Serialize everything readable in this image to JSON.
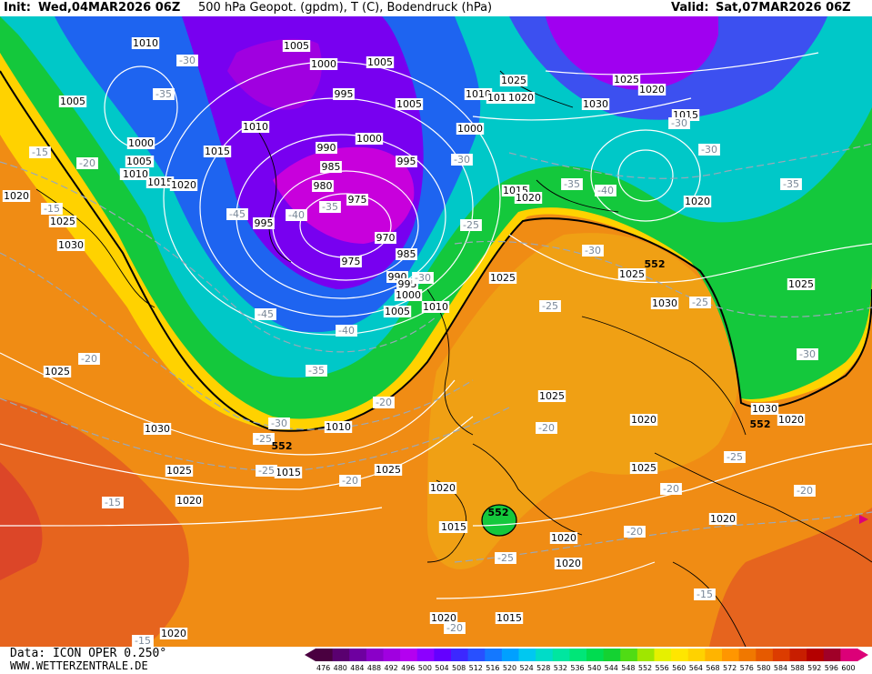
{
  "header": {
    "init_label": "Init:",
    "init_value": "Wed,04MAR2026 06Z",
    "title": "500 hPa Geopot. (gpdm), T (C), Bodendruck (hPa)",
    "valid_label": "Valid:",
    "valid_value": "Sat,07MAR2026 06Z"
  },
  "footer": {
    "data_source": "Data: ICON OPER 0.250°",
    "website": "WWW.WETTERZENTRALE.DE"
  },
  "colorbar": {
    "ticks": [
      "476",
      "480",
      "484",
      "488",
      "492",
      "496",
      "500",
      "504",
      "508",
      "512",
      "516",
      "520",
      "524",
      "528",
      "532",
      "536",
      "540",
      "544",
      "548",
      "552",
      "556",
      "560",
      "564",
      "568",
      "572",
      "576",
      "580",
      "584",
      "588",
      "592",
      "596",
      "600"
    ],
    "colors": [
      "#4a0040",
      "#5a0070",
      "#6e00a0",
      "#8a00c8",
      "#a000e0",
      "#b400f0",
      "#8c00ff",
      "#6400ff",
      "#3c28ff",
      "#2850ff",
      "#1478ff",
      "#00a0ff",
      "#00c8f0",
      "#00dcc8",
      "#00e6a0",
      "#00e678",
      "#00dc50",
      "#14d232",
      "#50dc14",
      "#a0e600",
      "#e6f000",
      "#ffe600",
      "#ffd200",
      "#ffb400",
      "#ff9600",
      "#f07800",
      "#e65a00",
      "#dc3c00",
      "#c81e00",
      "#b40000",
      "#a00028",
      "#dc0078"
    ]
  },
  "map": {
    "pressure_labels": [
      {
        "text": "1010"
      },
      {
        "text": "1005"
      },
      {
        "text": "1005"
      },
      {
        "text": "1000"
      },
      {
        "text": "1005"
      },
      {
        "text": "1025"
      },
      {
        "text": "1025"
      },
      {
        "text": "1010"
      },
      {
        "text": "1005"
      },
      {
        "text": "995"
      },
      {
        "text": "1005"
      },
      {
        "text": "1010"
      },
      {
        "text": "1011"
      },
      {
        "text": "1020"
      },
      {
        "text": "1030"
      },
      {
        "text": "1020"
      },
      {
        "text": "1015"
      },
      {
        "text": "1010"
      },
      {
        "text": "1000"
      },
      {
        "text": "1000"
      },
      {
        "text": "1000"
      },
      {
        "text": "1005"
      },
      {
        "text": "1015"
      },
      {
        "text": "990"
      },
      {
        "text": "1010"
      },
      {
        "text": "985"
      },
      {
        "text": "995"
      },
      {
        "text": "1015"
      },
      {
        "text": "1020"
      },
      {
        "text": "980"
      },
      {
        "text": "975"
      },
      {
        "text": "1015"
      },
      {
        "text": "1020"
      },
      {
        "text": "1020"
      },
      {
        "text": "1025"
      },
      {
        "text": "995"
      },
      {
        "text": "970"
      },
      {
        "text": "1030"
      },
      {
        "text": "975"
      },
      {
        "text": "985"
      },
      {
        "text": "990"
      },
      {
        "text": "995"
      },
      {
        "text": "1000"
      },
      {
        "text": "1005"
      },
      {
        "text": "1010"
      },
      {
        "text": "1015"
      },
      {
        "text": "1025"
      },
      {
        "text": "1025"
      },
      {
        "text": "1025"
      },
      {
        "text": "1030"
      },
      {
        "text": "1025"
      },
      {
        "text": "1025"
      },
      {
        "text": "1020"
      },
      {
        "text": "1030"
      },
      {
        "text": "1010"
      },
      {
        "text": "1030"
      },
      {
        "text": "1025"
      },
      {
        "text": "1015"
      },
      {
        "text": "1025"
      },
      {
        "text": "1025"
      },
      {
        "text": "1020"
      },
      {
        "text": "1020"
      },
      {
        "text": "1015"
      },
      {
        "text": "1020"
      },
      {
        "text": "1020"
      },
      {
        "text": "1020"
      },
      {
        "text": "1020"
      },
      {
        "text": "1015"
      },
      {
        "text": "1020"
      },
      {
        "text": "1020"
      },
      {
        "text": "1020"
      }
    ],
    "temperature_labels": [
      {
        "text": "-30"
      },
      {
        "text": "-35"
      },
      {
        "text": "-15"
      },
      {
        "text": "-20"
      },
      {
        "text": "-15"
      },
      {
        "text": "-20"
      },
      {
        "text": "-35"
      },
      {
        "text": "-45"
      },
      {
        "text": "-30"
      },
      {
        "text": "-40"
      },
      {
        "text": "-30"
      },
      {
        "text": "-25"
      },
      {
        "text": "-30"
      },
      {
        "text": "-35"
      },
      {
        "text": "-40"
      },
      {
        "text": "-30"
      },
      {
        "text": "-35"
      },
      {
        "text": "-45"
      },
      {
        "text": "-40"
      },
      {
        "text": "-35"
      },
      {
        "text": "-30"
      },
      {
        "text": "-25"
      },
      {
        "text": "-25"
      },
      {
        "text": "-20"
      },
      {
        "text": "-25"
      },
      {
        "text": "-25"
      },
      {
        "text": "-20"
      },
      {
        "text": "-15"
      },
      {
        "text": "-20"
      },
      {
        "text": "-25"
      },
      {
        "text": "-25"
      },
      {
        "text": "-20"
      },
      {
        "text": "-20"
      },
      {
        "text": "-20"
      },
      {
        "text": "-20"
      },
      {
        "text": "-15"
      },
      {
        "text": "-15"
      },
      {
        "text": "-30"
      },
      {
        "text": "-30"
      }
    ],
    "contour_552_labels": [
      {
        "text": "552"
      },
      {
        "text": "552"
      },
      {
        "text": "552"
      },
      {
        "text": "552"
      }
    ]
  }
}
